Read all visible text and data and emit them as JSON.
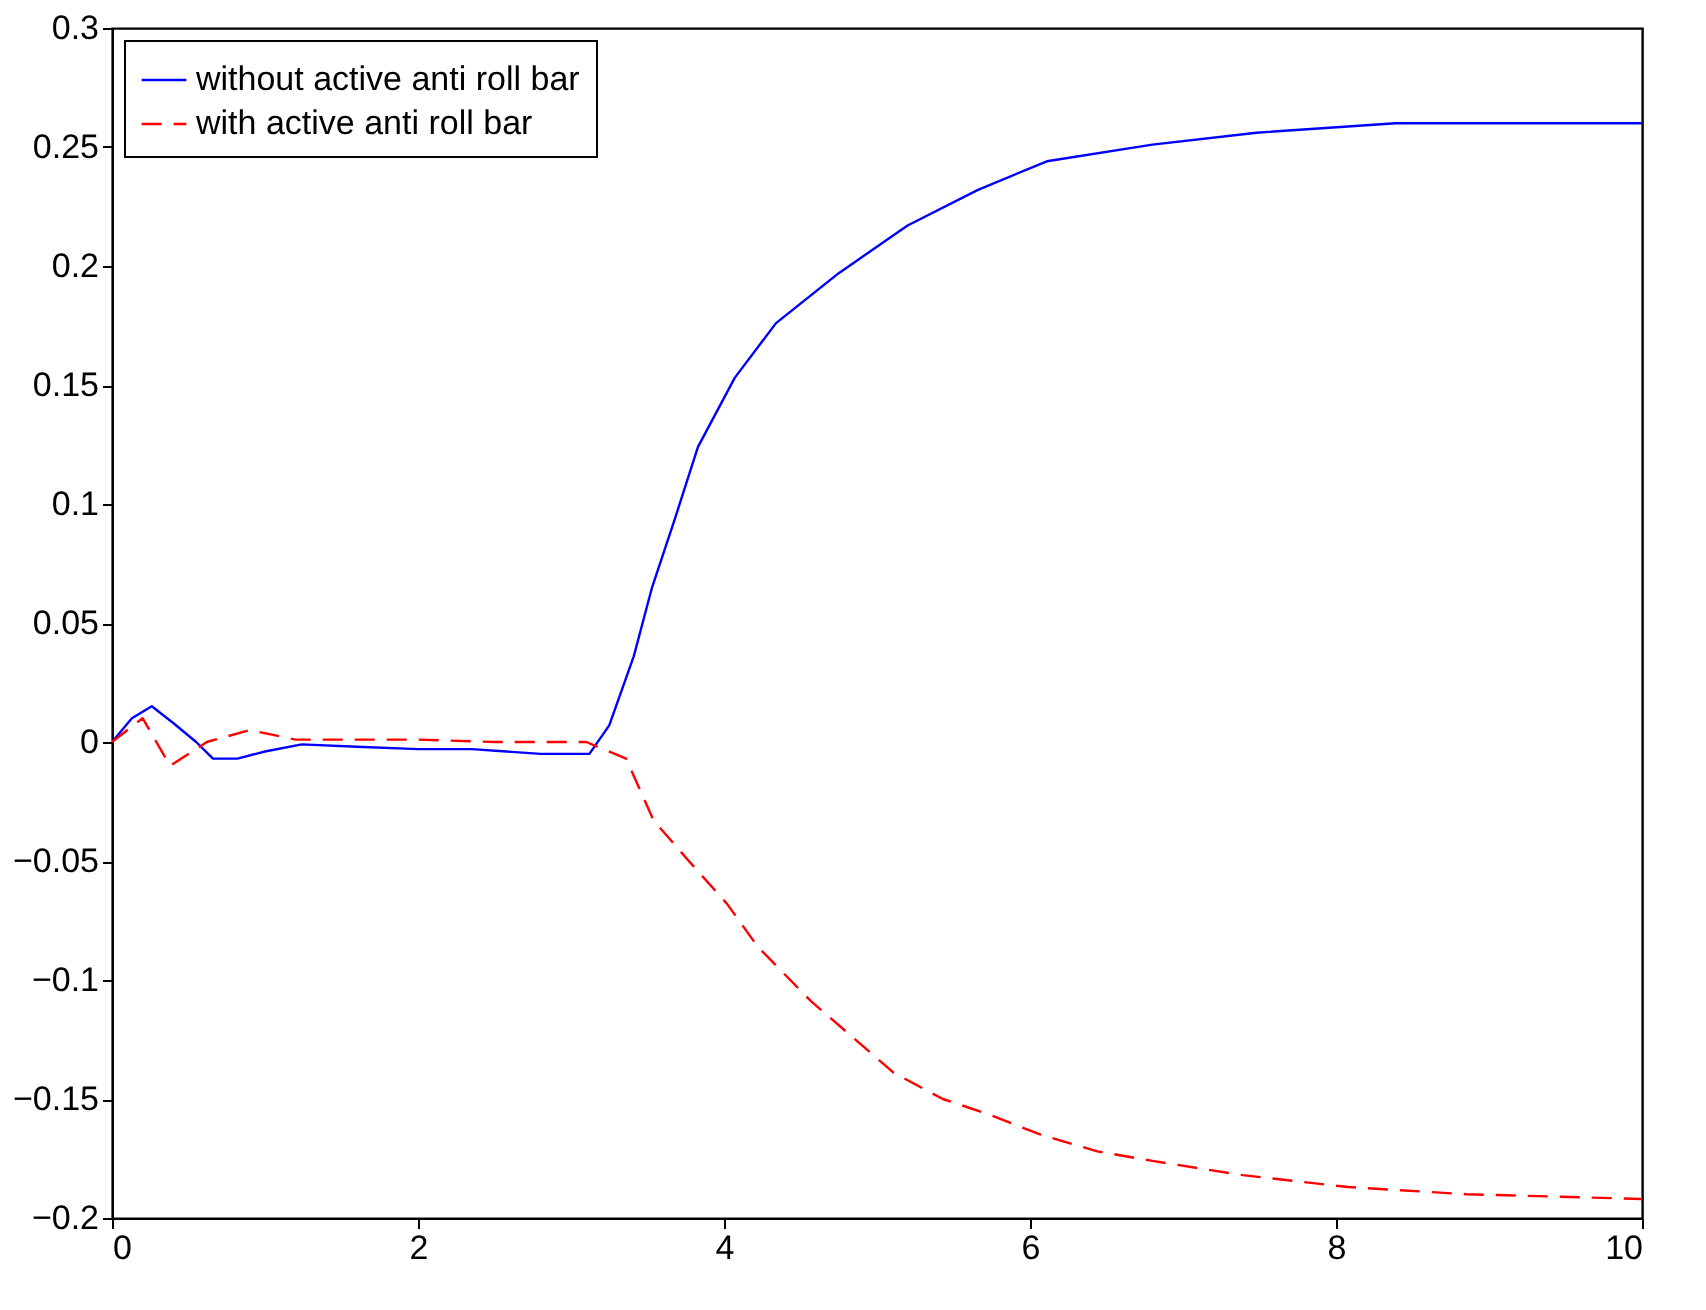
{
  "chart_data": {
    "type": "line",
    "xlim": [
      0,
      10
    ],
    "ylim": [
      -0.2,
      0.3
    ],
    "xticks": [
      0,
      2,
      4,
      6,
      8,
      10
    ],
    "yticks": [
      -0.2,
      -0.15,
      -0.1,
      -0.05,
      0,
      0.05,
      0.1,
      0.15,
      0.2,
      0.25,
      0.3
    ],
    "grid": false,
    "legend": "top left",
    "series": [
      {
        "name": "without active anti roll bar",
        "color": "#0000ff",
        "line_style": "solid",
        "x": [
          0,
          0.13,
          0.26,
          0.4,
          0.55,
          0.66,
          0.82,
          1.0,
          1.24,
          1.6,
          2.0,
          2.35,
          2.8,
          3.12,
          3.25,
          3.41,
          3.53,
          3.68,
          3.83,
          4.07,
          4.34,
          4.75,
          5.2,
          5.66,
          6.11,
          6.8,
          7.48,
          8.39,
          10
        ],
        "values": [
          0,
          0.01,
          0.015,
          0.008,
          0.0,
          -0.007,
          -0.007,
          -0.004,
          -0.001,
          -0.002,
          -0.003,
          -0.003,
          -0.005,
          -0.005,
          0.007,
          0.036,
          0.065,
          0.094,
          0.124,
          0.153,
          0.176,
          0.197,
          0.217,
          0.232,
          0.244,
          0.251,
          0.256,
          0.26,
          0.26
        ]
      },
      {
        "name": "with active anti roll bar",
        "color": "#ff0000",
        "line_style": "dashed",
        "x": [
          0,
          0.2,
          0.38,
          0.62,
          0.9,
          1.2,
          1.6,
          2.0,
          2.5,
          3.0,
          3.1,
          3.36,
          3.54,
          3.77,
          4.02,
          4.22,
          4.57,
          4.84,
          5.11,
          5.43,
          5.71,
          6.07,
          6.44,
          6.8,
          7.39,
          8.08,
          8.85,
          10
        ],
        "values": [
          0,
          0.01,
          -0.01,
          0.0,
          0.005,
          0.001,
          0.001,
          0.001,
          0.0,
          0.0,
          0.0,
          -0.007,
          -0.033,
          -0.05,
          -0.068,
          -0.086,
          -0.109,
          -0.124,
          -0.139,
          -0.15,
          -0.156,
          -0.165,
          -0.172,
          -0.176,
          -0.182,
          -0.187,
          -0.19,
          -0.192
        ]
      }
    ]
  }
}
